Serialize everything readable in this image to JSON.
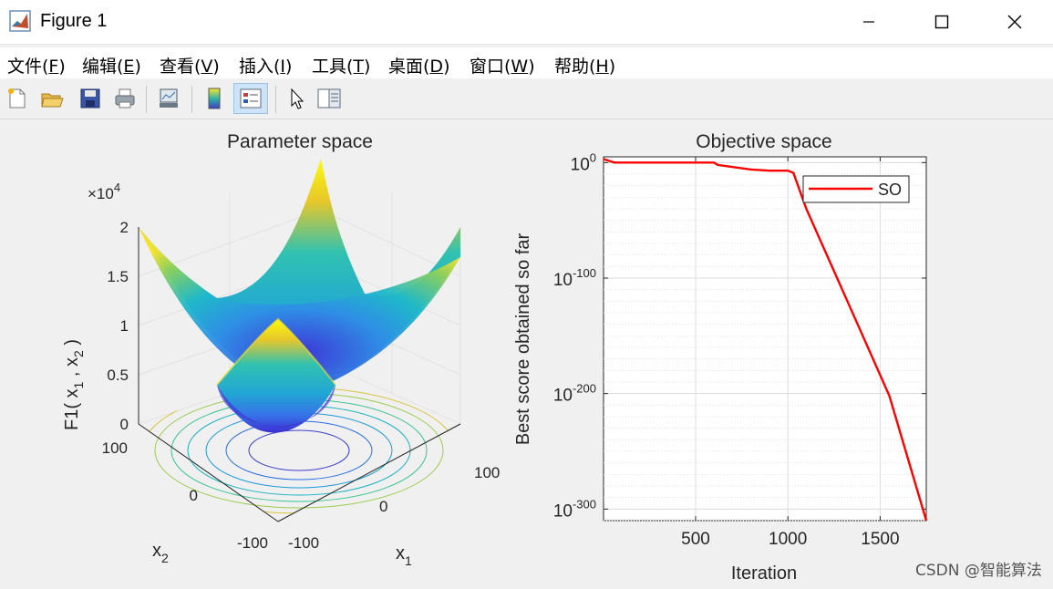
{
  "window": {
    "title": "Figure 1"
  },
  "menu": [
    {
      "label": "文件(",
      "key": "F",
      "tail": ")"
    },
    {
      "label": "编辑(",
      "key": "E",
      "tail": ")"
    },
    {
      "label": "查看(",
      "key": "V",
      "tail": ")"
    },
    {
      "label": "插入(",
      "key": "I",
      "tail": ")"
    },
    {
      "label": "工具(",
      "key": "T",
      "tail": ")"
    },
    {
      "label": "桌面(",
      "key": "D",
      "tail": ")"
    },
    {
      "label": "窗口(",
      "key": "W",
      "tail": ")"
    },
    {
      "label": "帮助(",
      "key": "H",
      "tail": ")"
    }
  ],
  "toolbar": [
    "new-figure-icon",
    "open-file-icon",
    "save-icon",
    "print-icon",
    "link-plot-icon",
    "colorbar-icon",
    "legend-icon",
    "pointer-icon",
    "property-inspector-icon"
  ],
  "chart_data": [
    {
      "type": "surface",
      "title": "Parameter space",
      "xlabel": "x1",
      "ylabel": "x2",
      "zlabel": "F1( x1 , x2 )",
      "z_exponent": "×10^4",
      "xlim": [
        -100,
        100
      ],
      "ylim": [
        -100,
        100
      ],
      "zlim": [
        0,
        20000
      ],
      "x_ticks": [
        "-100",
        "0",
        "100"
      ],
      "y_ticks": [
        "100",
        "0",
        "-100"
      ],
      "z_ticks": [
        "0",
        "0.5",
        "1",
        "1.5",
        "2"
      ],
      "function": "x1^2 + x2^2",
      "colormap": "parula",
      "contours_on_floor": true
    },
    {
      "type": "line",
      "title": "Objective space",
      "xlabel": "Iteration",
      "ylabel": "Best score obtained so far",
      "yscale": "log",
      "xlim": [
        1,
        1750
      ],
      "x_ticks": [
        500,
        1000,
        1500
      ],
      "y_tick_exponents": [
        0,
        -100,
        -200,
        -300
      ],
      "ylim_exponent": [
        -310,
        5
      ],
      "grid": true,
      "legend_position": "top-right",
      "series": [
        {
          "name": "SO",
          "color": "#ff0000",
          "x": [
            1,
            60,
            600,
            620,
            800,
            900,
            1000,
            1030,
            1100,
            1250,
            1400,
            1550,
            1750
          ],
          "log10_y": [
            3,
            0,
            0,
            -2,
            -6,
            -7,
            -7,
            -9,
            -40,
            -94,
            -148,
            -202,
            -310
          ]
        }
      ]
    }
  ],
  "watermark": "CSDN @智能算法"
}
